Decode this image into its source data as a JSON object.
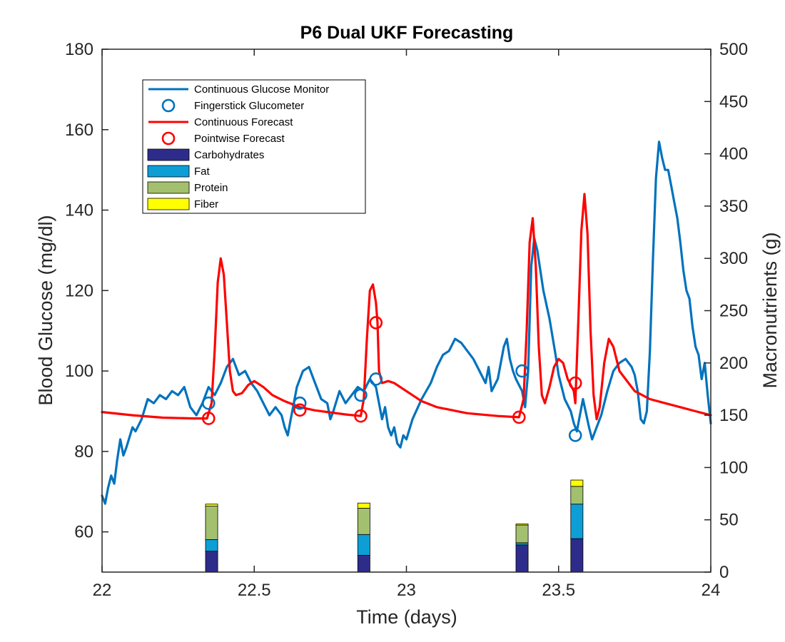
{
  "chart_data": {
    "type": "line",
    "title": "P6 Dual UKF Forecasting",
    "xlabel": "Time (days)",
    "ylabel": "Blood Glucose (mg/dl)",
    "ylabel_right": "Macronutrients (g)",
    "xlim": [
      22,
      24
    ],
    "ylim": [
      50,
      180
    ],
    "ylim_right": [
      0,
      500
    ],
    "xticks": [
      22,
      22.5,
      23,
      23.5,
      24
    ],
    "xtick_labels": [
      "22",
      "22.5",
      "23",
      "23.5",
      "24"
    ],
    "yticks": [
      60,
      80,
      100,
      120,
      140,
      160,
      180
    ],
    "ytick_labels": [
      "60",
      "80",
      "100",
      "120",
      "140",
      "160",
      "180"
    ],
    "yticks_right": [
      0,
      50,
      100,
      150,
      200,
      250,
      300,
      350,
      400,
      450,
      500
    ],
    "ytick_labels_right": [
      "0",
      "50",
      "100",
      "150",
      "200",
      "250",
      "300",
      "350",
      "400",
      "450",
      "500"
    ],
    "legend_position": "top-left",
    "legend": [
      {
        "label": "Continuous Glucose Monitor",
        "kind": "line",
        "color": "#0072BD"
      },
      {
        "label": "Fingerstick Glucometer",
        "kind": "circle",
        "color": "#0072BD"
      },
      {
        "label": "Continuous Forecast",
        "kind": "line",
        "color": "#FF0000"
      },
      {
        "label": "Pointwise Forecast",
        "kind": "circle",
        "color": "#FF0000"
      },
      {
        "label": "Carbohydrates",
        "kind": "patch",
        "color": "#2E2C8A"
      },
      {
        "label": "Fat",
        "kind": "patch",
        "color": "#0E9ED6"
      },
      {
        "label": "Protein",
        "kind": "patch",
        "color": "#A3C06E"
      },
      {
        "label": "Fiber",
        "kind": "patch",
        "color": "#FFFF00"
      }
    ],
    "series": [
      {
        "name": "Continuous Glucose Monitor",
        "color": "#0072BD",
        "points": [
          [
            22.0,
            69
          ],
          [
            22.01,
            67
          ],
          [
            22.02,
            71
          ],
          [
            22.03,
            74
          ],
          [
            22.04,
            72
          ],
          [
            22.05,
            78
          ],
          [
            22.06,
            83
          ],
          [
            22.07,
            79
          ],
          [
            22.08,
            81
          ],
          [
            22.1,
            86
          ],
          [
            22.11,
            85
          ],
          [
            22.13,
            88
          ],
          [
            22.15,
            93
          ],
          [
            22.17,
            92
          ],
          [
            22.19,
            94
          ],
          [
            22.21,
            93
          ],
          [
            22.23,
            95
          ],
          [
            22.25,
            94
          ],
          [
            22.27,
            96
          ],
          [
            22.29,
            91
          ],
          [
            22.31,
            89
          ],
          [
            22.33,
            92
          ],
          [
            22.35,
            96
          ],
          [
            22.37,
            94
          ],
          [
            22.39,
            97
          ],
          [
            22.41,
            101
          ],
          [
            22.43,
            103
          ],
          [
            22.45,
            99
          ],
          [
            22.47,
            100
          ],
          [
            22.49,
            97
          ],
          [
            22.51,
            95
          ],
          [
            22.53,
            92
          ],
          [
            22.55,
            89
          ],
          [
            22.57,
            91
          ],
          [
            22.59,
            89
          ],
          [
            22.6,
            86
          ],
          [
            22.61,
            84
          ],
          [
            22.62,
            88
          ],
          [
            22.64,
            96
          ],
          [
            22.66,
            100
          ],
          [
            22.68,
            101
          ],
          [
            22.7,
            97
          ],
          [
            22.72,
            93
          ],
          [
            22.74,
            92
          ],
          [
            22.75,
            88
          ],
          [
            22.76,
            90
          ],
          [
            22.78,
            95
          ],
          [
            22.8,
            92
          ],
          [
            22.82,
            94
          ],
          [
            22.84,
            96
          ],
          [
            22.86,
            95
          ],
          [
            22.88,
            98
          ],
          [
            22.9,
            96
          ],
          [
            22.91,
            92
          ],
          [
            22.92,
            88
          ],
          [
            22.93,
            91
          ],
          [
            22.94,
            86
          ],
          [
            22.95,
            84
          ],
          [
            22.96,
            86
          ],
          [
            22.97,
            82
          ],
          [
            22.98,
            81
          ],
          [
            22.99,
            84
          ],
          [
            23.0,
            83
          ],
          [
            23.02,
            88
          ],
          [
            23.05,
            93
          ],
          [
            23.08,
            97
          ],
          [
            23.1,
            101
          ],
          [
            23.12,
            104
          ],
          [
            23.14,
            105
          ],
          [
            23.16,
            108
          ],
          [
            23.18,
            107
          ],
          [
            23.2,
            105
          ],
          [
            23.22,
            103
          ],
          [
            23.24,
            100
          ],
          [
            23.26,
            97
          ],
          [
            23.27,
            101
          ],
          [
            23.28,
            95
          ],
          [
            23.3,
            98
          ],
          [
            23.32,
            106
          ],
          [
            23.33,
            108
          ],
          [
            23.34,
            103
          ],
          [
            23.35,
            100
          ],
          [
            23.36,
            98
          ],
          [
            23.38,
            95
          ],
          [
            23.39,
            91
          ],
          [
            23.4,
            100
          ],
          [
            23.41,
            126
          ],
          [
            23.42,
            133
          ],
          [
            23.43,
            130
          ],
          [
            23.45,
            120
          ],
          [
            23.47,
            113
          ],
          [
            23.49,
            104
          ],
          [
            23.5,
            99
          ],
          [
            23.52,
            93
          ],
          [
            23.54,
            90
          ],
          [
            23.55,
            87
          ],
          [
            23.56,
            85
          ],
          [
            23.57,
            89
          ],
          [
            23.58,
            93
          ],
          [
            23.6,
            86
          ],
          [
            23.61,
            83
          ],
          [
            23.62,
            85
          ],
          [
            23.64,
            89
          ],
          [
            23.66,
            95
          ],
          [
            23.68,
            100
          ],
          [
            23.7,
            102
          ],
          [
            23.72,
            103
          ],
          [
            23.74,
            101
          ],
          [
            23.75,
            99
          ],
          [
            23.76,
            95
          ],
          [
            23.77,
            88
          ],
          [
            23.78,
            87
          ],
          [
            23.79,
            90
          ],
          [
            23.8,
            105
          ],
          [
            23.81,
            128
          ],
          [
            23.82,
            148
          ],
          [
            23.83,
            157
          ],
          [
            23.84,
            153
          ],
          [
            23.85,
            150
          ],
          [
            23.86,
            150
          ],
          [
            23.87,
            146
          ],
          [
            23.88,
            142
          ],
          [
            23.89,
            138
          ],
          [
            23.9,
            132
          ],
          [
            23.91,
            125
          ],
          [
            23.92,
            120
          ],
          [
            23.93,
            118
          ],
          [
            23.94,
            111
          ],
          [
            23.95,
            106
          ],
          [
            23.96,
            104
          ],
          [
            23.97,
            98
          ],
          [
            23.98,
            102
          ],
          [
            23.99,
            94
          ],
          [
            24.0,
            87
          ]
        ]
      },
      {
        "name": "Continuous Forecast",
        "color": "#FF0000",
        "points": [
          [
            22.0,
            89.8
          ],
          [
            22.1,
            89
          ],
          [
            22.2,
            88.4
          ],
          [
            22.3,
            88.2
          ],
          [
            22.345,
            88.2
          ],
          [
            22.36,
            92
          ],
          [
            22.37,
            105
          ],
          [
            22.38,
            122
          ],
          [
            22.39,
            128
          ],
          [
            22.4,
            124
          ],
          [
            22.41,
            112
          ],
          [
            22.42,
            100
          ],
          [
            22.43,
            95
          ],
          [
            22.44,
            94
          ],
          [
            22.46,
            94.5
          ],
          [
            22.48,
            96.5
          ],
          [
            22.5,
            97.5
          ],
          [
            22.53,
            96
          ],
          [
            22.56,
            94
          ],
          [
            22.6,
            92.5
          ],
          [
            22.65,
            91
          ],
          [
            22.7,
            90.2
          ],
          [
            22.8,
            89.2
          ],
          [
            22.85,
            88.8
          ],
          [
            22.86,
            93
          ],
          [
            22.87,
            108
          ],
          [
            22.88,
            120
          ],
          [
            22.89,
            121.5
          ],
          [
            22.9,
            117
          ],
          [
            22.905,
            112
          ],
          [
            22.91,
            100
          ],
          [
            22.92,
            97
          ],
          [
            22.94,
            97.5
          ],
          [
            22.96,
            97
          ],
          [
            23.0,
            95
          ],
          [
            23.05,
            92.5
          ],
          [
            23.1,
            91
          ],
          [
            23.2,
            89.5
          ],
          [
            23.3,
            88.8
          ],
          [
            23.37,
            88.5
          ],
          [
            23.385,
            93
          ],
          [
            23.395,
            110
          ],
          [
            23.405,
            132
          ],
          [
            23.415,
            138
          ],
          [
            23.425,
            126
          ],
          [
            23.435,
            106
          ],
          [
            23.445,
            94
          ],
          [
            23.455,
            92
          ],
          [
            23.47,
            96
          ],
          [
            23.485,
            101
          ],
          [
            23.5,
            103
          ],
          [
            23.515,
            102
          ],
          [
            23.53,
            98
          ],
          [
            23.55,
            95
          ],
          [
            23.555,
            92
          ],
          [
            23.565,
            113
          ],
          [
            23.575,
            135
          ],
          [
            23.585,
            144
          ],
          [
            23.595,
            134
          ],
          [
            23.605,
            110
          ],
          [
            23.615,
            94
          ],
          [
            23.625,
            88
          ],
          [
            23.635,
            91
          ],
          [
            23.65,
            102
          ],
          [
            23.665,
            108
          ],
          [
            23.68,
            106
          ],
          [
            23.7,
            100
          ],
          [
            23.75,
            95
          ],
          [
            23.8,
            93
          ],
          [
            23.85,
            92
          ],
          [
            23.9,
            91
          ],
          [
            23.95,
            90
          ],
          [
            24.0,
            89
          ]
        ]
      }
    ],
    "markers": [
      {
        "name": "Fingerstick Glucometer",
        "color": "#0072BD",
        "points": [
          [
            22.35,
            92
          ],
          [
            22.65,
            92
          ],
          [
            22.85,
            94
          ],
          [
            22.9,
            98
          ],
          [
            23.38,
            100
          ],
          [
            23.555,
            84
          ]
        ]
      },
      {
        "name": "Pointwise Forecast",
        "color": "#FF0000",
        "points": [
          [
            22.35,
            88.2
          ],
          [
            22.65,
            90.3
          ],
          [
            22.85,
            88.8
          ],
          [
            22.9,
            112
          ],
          [
            23.37,
            88.5
          ],
          [
            23.555,
            97
          ]
        ]
      }
    ],
    "bars": {
      "stack_order": [
        "Carbohydrates",
        "Fat",
        "Protein",
        "Fiber"
      ],
      "colors": [
        "#2E2C8A",
        "#0E9ED6",
        "#A3C06E",
        "#FFFF00"
      ],
      "width_days": 0.04,
      "groups": [
        {
          "x": 22.36,
          "values": [
            20,
            11,
            32,
            2
          ]
        },
        {
          "x": 22.86,
          "values": [
            16,
            20,
            25,
            5
          ]
        },
        {
          "x": 23.38,
          "values": [
            26,
            2,
            17,
            1
          ]
        },
        {
          "x": 23.56,
          "values": [
            32,
            33,
            17,
            6
          ]
        }
      ]
    }
  }
}
